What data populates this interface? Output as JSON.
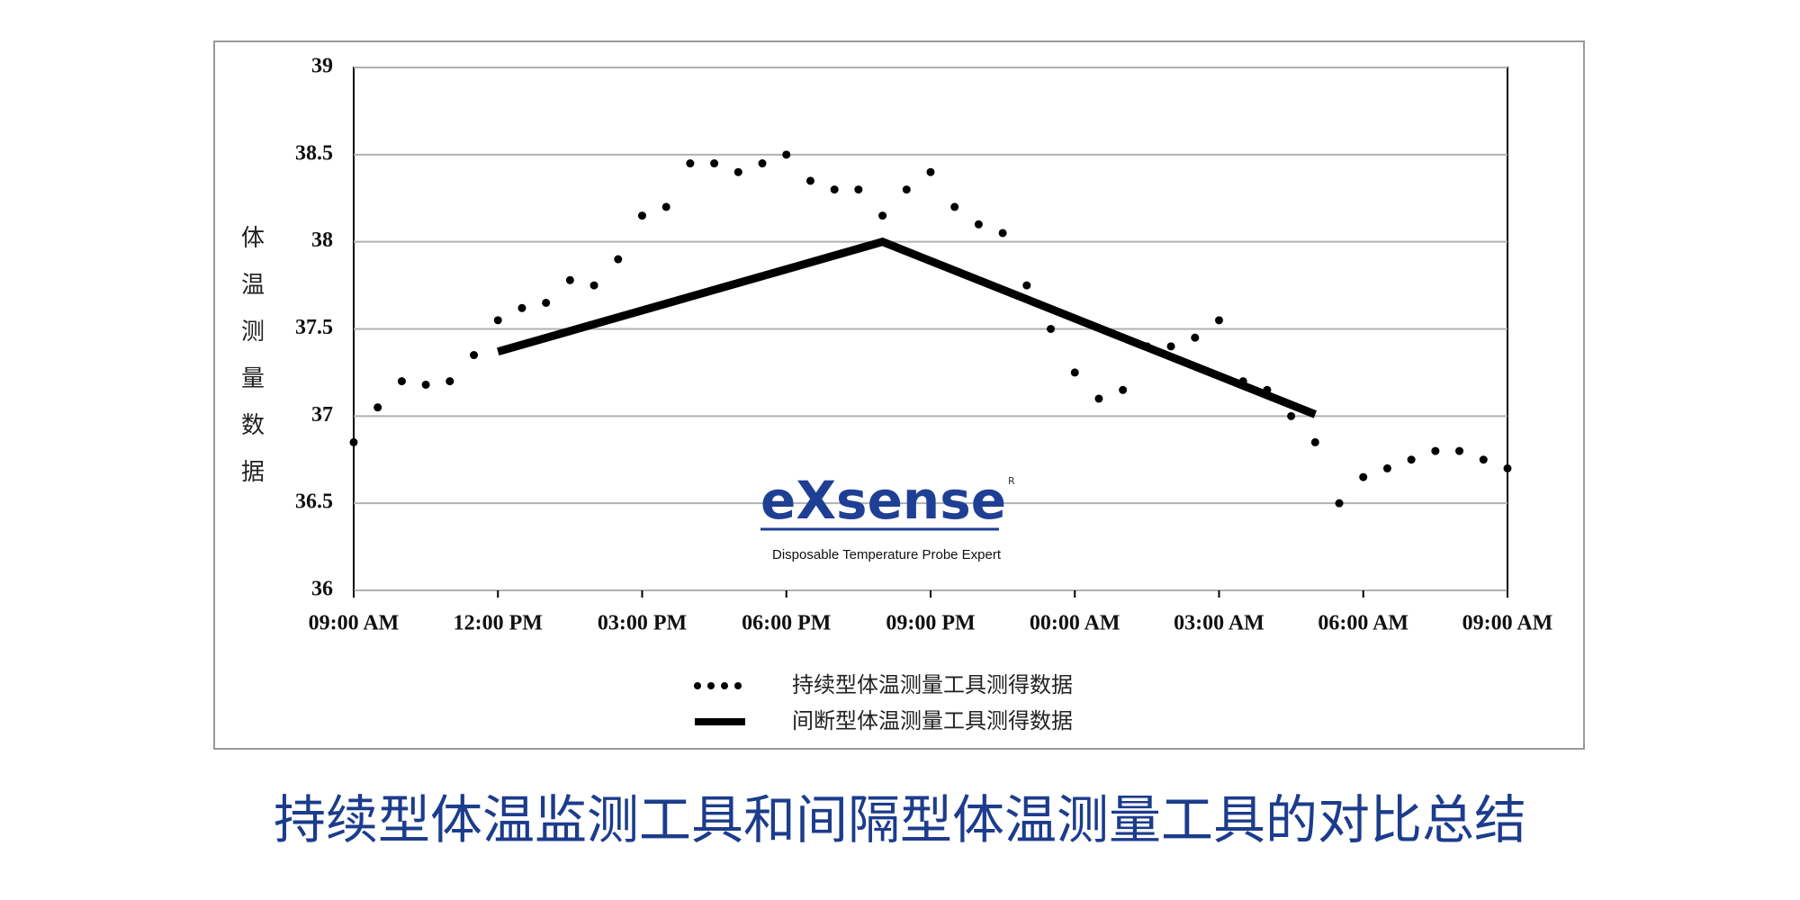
{
  "chart_data": {
    "type": "line",
    "title": "持续型体温监测工具和间隔型体温测量工具的对比总结",
    "y_label": "体温测量数据",
    "xlim": [
      0,
      24
    ],
    "xticks": [
      {
        "value": 0,
        "label": "09:00 AM"
      },
      {
        "value": 3,
        "label": "12:00 PM"
      },
      {
        "value": 6,
        "label": "03:00 PM"
      },
      {
        "value": 9,
        "label": "06:00 PM"
      },
      {
        "value": 12,
        "label": "09:00 PM"
      },
      {
        "value": 15,
        "label": "00:00 AM"
      },
      {
        "value": 18,
        "label": "03:00 AM"
      },
      {
        "value": 21,
        "label": "06:00 AM"
      },
      {
        "value": 24,
        "label": "09:00 AM"
      }
    ],
    "ylim": [
      36,
      39
    ],
    "yticks": [
      36,
      36.5,
      37,
      37.5,
      38,
      38.5,
      39
    ],
    "grid": true,
    "series": [
      {
        "name": "持续型体温测量工具测得数据",
        "color": "#000000",
        "style": "dotted",
        "x": [
          0,
          0.5,
          1,
          1.5,
          2,
          2.5,
          3,
          3.5,
          4,
          4.5,
          5,
          5.5,
          6,
          6.5,
          7,
          7.5,
          8,
          8.5,
          9,
          9.5,
          10,
          10.5,
          11,
          11.5,
          12,
          12.5,
          13,
          13.5,
          14,
          14.5,
          15,
          15.5,
          16,
          16.5,
          17,
          17.5,
          18,
          18.5,
          19,
          19.5,
          20,
          20.5,
          21,
          21.5,
          22,
          22.5,
          23,
          23.5,
          24
        ],
        "values": [
          36.85,
          37.05,
          37.2,
          37.18,
          37.2,
          37.35,
          37.55,
          37.62,
          37.65,
          37.78,
          37.75,
          37.9,
          38.15,
          38.2,
          38.45,
          38.45,
          38.4,
          38.45,
          38.5,
          38.35,
          38.3,
          38.3,
          38.15,
          38.3,
          38.4,
          38.2,
          38.1,
          38.05,
          37.75,
          37.5,
          37.25,
          37.1,
          37.15,
          37.4,
          37.4,
          37.45,
          37.55,
          37.2,
          37.15,
          37.0,
          36.85,
          36.5,
          36.65,
          36.7,
          36.75,
          36.8,
          36.8,
          36.75,
          36.7
        ]
      },
      {
        "name": "间断型体温测量工具测得数据",
        "color": "#000000",
        "style": "solid",
        "x": [
          3,
          11,
          20
        ],
        "values": [
          37.37,
          38.0,
          37.01
        ]
      }
    ]
  },
  "logo": {
    "brand": "eXsense",
    "mark": "R",
    "tagline": "Disposable Temperature Probe Expert"
  }
}
